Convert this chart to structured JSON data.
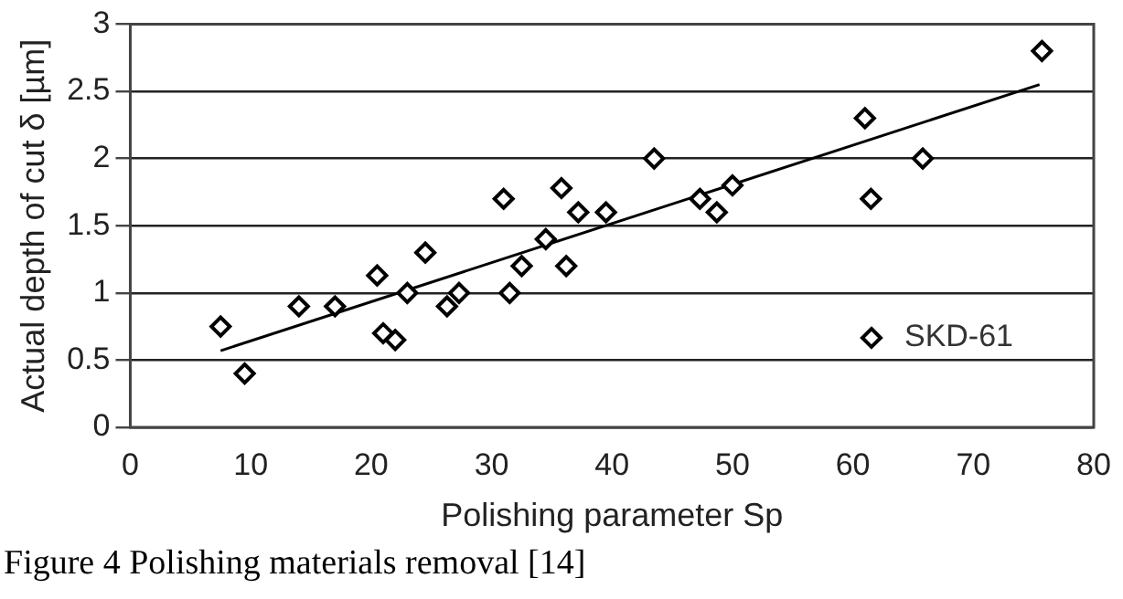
{
  "chart_data": {
    "type": "scatter",
    "xlabel": "Polishing parameter Sp",
    "ylabel": "Actual depth of cut δ [µm]",
    "xlim": [
      0,
      80
    ],
    "xticks": [
      0,
      10,
      20,
      30,
      40,
      50,
      60,
      70,
      80
    ],
    "ylim": [
      0,
      3
    ],
    "yticks": [
      0,
      0.5,
      1,
      1.5,
      2,
      2.5,
      3
    ],
    "grid": "y",
    "legend": "bottom right",
    "marker": "diamond",
    "series": [
      {
        "name": "SKD-61",
        "color": "#000000",
        "x": [
          7.5,
          9.5,
          14,
          17,
          20.5,
          21,
          22,
          23,
          24.5,
          26.3,
          27.3,
          31,
          31.5,
          32.5,
          34.5,
          35.8,
          36.2,
          37.2,
          39.5,
          43.5,
          47.3,
          48.7,
          50,
          61,
          61.5,
          65.8,
          75.7
        ],
        "values": [
          0.75,
          0.4,
          0.9,
          0.9,
          1.13,
          0.7,
          0.65,
          1.0,
          1.3,
          0.9,
          1.0,
          1.7,
          1.0,
          1.2,
          1.4,
          1.78,
          1.2,
          1.6,
          1.6,
          2.0,
          1.7,
          1.6,
          1.8,
          2.3,
          1.7,
          2.0,
          2.8
        ]
      },
      {
        "type": "line",
        "color": "#000000",
        "x": [
          7.5,
          75.5
        ],
        "values": [
          0.57,
          2.55
        ],
        "marker": "none"
      }
    ],
    "annotations": [
      "Figure 4 Polishing materials removal [14]"
    ]
  }
}
